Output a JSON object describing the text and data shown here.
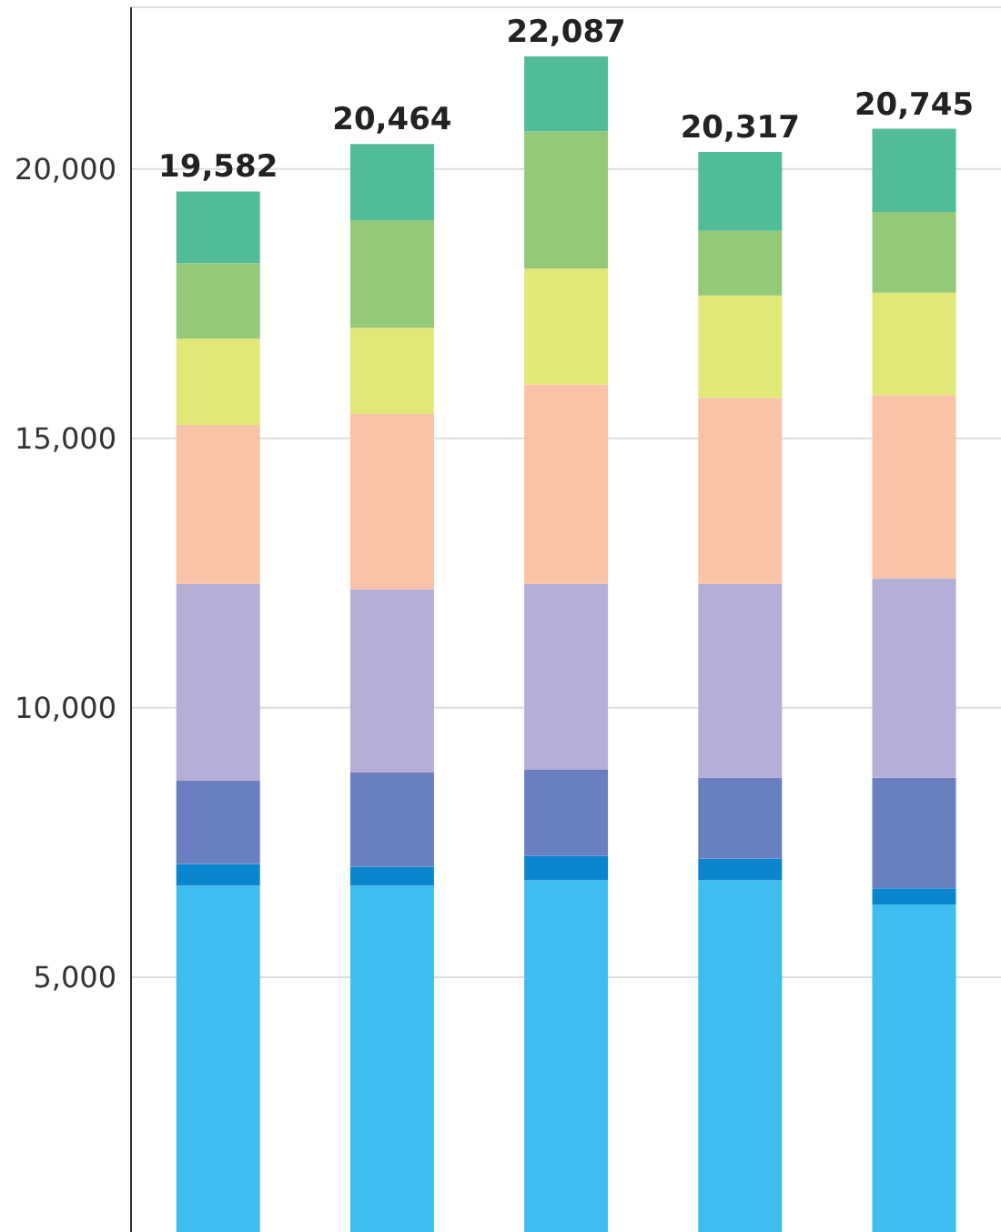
{
  "chart_data": {
    "type": "bar",
    "stacked": true,
    "categories": [
      null,
      null,
      null,
      null,
      null
    ],
    "series": [
      {
        "color": "#3fbdee",
        "values": [
          6700,
          6700,
          6800,
          6800,
          6350
        ]
      },
      {
        "color": "#0a86cf",
        "values": [
          400,
          350,
          450,
          400,
          300
        ]
      },
      {
        "color": "#6a7fbf",
        "values": [
          1550,
          1750,
          1600,
          1500,
          2050
        ]
      },
      {
        "color": "#b5aed6",
        "values": [
          3650,
          3400,
          3450,
          3600,
          3700
        ]
      },
      {
        "color": "#f7c2a5",
        "values": [
          2950,
          3250,
          3700,
          3450,
          3400
        ]
      },
      {
        "color": "#e2e877",
        "values": [
          1600,
          1600,
          2150,
          1900,
          1900
        ]
      },
      {
        "color": "#93c979",
        "values": [
          1400,
          2000,
          2550,
          1200,
          1500
        ]
      },
      {
        "color": "#52bb98",
        "values": [
          1332,
          1414,
          1387,
          1467,
          1545
        ]
      }
    ],
    "totals": [
      "19,582",
      "20,464",
      "22,087",
      "20,317",
      "20,745"
    ],
    "ylim": [
      0,
      23000
    ],
    "yticks": [
      {
        "value": 5000,
        "label": "5,000"
      },
      {
        "value": 10000,
        "label": "10,000"
      },
      {
        "value": 15000,
        "label": "15,000"
      },
      {
        "value": 20000,
        "label": "20,000"
      }
    ],
    "grid": "y",
    "legend": false,
    "tick_labels": "y"
  }
}
